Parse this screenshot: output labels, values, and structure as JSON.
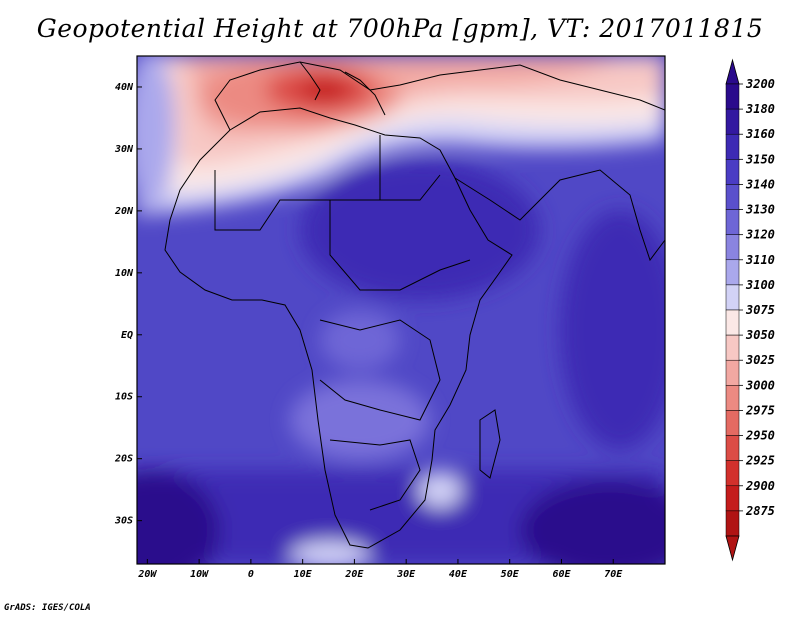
{
  "title": "Geopotential Height at 700hPa [gpm], VT: 2017011815",
  "credit": "GrADS: IGES/COLA",
  "map": {
    "lon_range": [
      -22,
      80
    ],
    "lat_range": [
      -37,
      45
    ],
    "lon_ticks": [
      {
        "value": -20,
        "label": "20W"
      },
      {
        "value": -10,
        "label": "10W"
      },
      {
        "value": 0,
        "label": "0"
      },
      {
        "value": 10,
        "label": "10E"
      },
      {
        "value": 20,
        "label": "20E"
      },
      {
        "value": 30,
        "label": "30E"
      },
      {
        "value": 40,
        "label": "40E"
      },
      {
        "value": 50,
        "label": "50E"
      },
      {
        "value": 60,
        "label": "60E"
      },
      {
        "value": 70,
        "label": "70E"
      }
    ],
    "lat_ticks": [
      {
        "value": 40,
        "label": "40N"
      },
      {
        "value": 30,
        "label": "30N"
      },
      {
        "value": 20,
        "label": "20N"
      },
      {
        "value": 10,
        "label": "10N"
      },
      {
        "value": 0,
        "label": "EQ"
      },
      {
        "value": -10,
        "label": "10S"
      },
      {
        "value": -20,
        "label": "20S"
      },
      {
        "value": -30,
        "label": "30S"
      }
    ]
  },
  "colorbar": {
    "levels": [
      {
        "label": "3200",
        "color": "#2a0a8c"
      },
      {
        "label": "3180",
        "color": "#3318a0"
      },
      {
        "label": "3160",
        "color": "#3d2ab4"
      },
      {
        "label": "3150",
        "color": "#4a3cc4"
      },
      {
        "label": "3140",
        "color": "#5a50cc"
      },
      {
        "label": "3130",
        "color": "#6e66d6"
      },
      {
        "label": "3120",
        "color": "#8a84e0"
      },
      {
        "label": "3110",
        "color": "#aaa8ec"
      },
      {
        "label": "3100",
        "color": "#d2d2f6"
      },
      {
        "label": "3075",
        "color": "#fbe8e6"
      },
      {
        "label": "3050",
        "color": "#f7c8c4"
      },
      {
        "label": "3025",
        "color": "#f2a8a2"
      },
      {
        "label": "3000",
        "color": "#ec8a82"
      },
      {
        "label": "2975",
        "color": "#e46a62"
      },
      {
        "label": "2950",
        "color": "#dc4c46"
      },
      {
        "label": "2925",
        "color": "#d2302c"
      },
      {
        "label": "2900",
        "color": "#c41c1c"
      },
      {
        "label": "2875",
        "color": "#b01414"
      }
    ],
    "top_arrow_color": "#2a0a8c",
    "bottom_arrow_color": "#b01414"
  }
}
